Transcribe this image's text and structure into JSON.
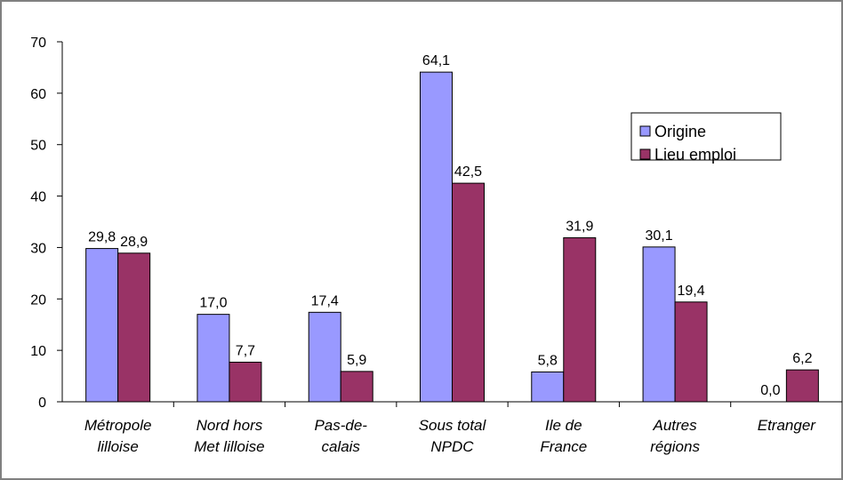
{
  "chart_data": {
    "type": "bar",
    "categories": [
      "Métropole\nlilloise",
      "Nord hors\nMet lilloise",
      "Pas-de-\ncalais",
      "Sous total\nNPDC",
      "Ile de\nFrance",
      "Autres\nrégions",
      "Etranger"
    ],
    "series": [
      {
        "name": "Origine",
        "color": "#9999ff",
        "values": [
          29.8,
          17.0,
          17.4,
          64.1,
          5.8,
          30.1,
          0.0
        ],
        "value_labels": [
          "29,8",
          "17,0",
          "17,4",
          "64,1",
          "5,8",
          "30,1",
          "0,0"
        ]
      },
      {
        "name": "Lieu emploi",
        "color": "#993366",
        "values": [
          28.9,
          7.7,
          5.9,
          42.5,
          31.9,
          19.4,
          6.2
        ],
        "value_labels": [
          "28,9",
          "7,7",
          "5,9",
          "42,5",
          "31,9",
          "19,4",
          "6,2"
        ]
      }
    ],
    "ylim": [
      0,
      70
    ],
    "yticks": [
      0,
      10,
      20,
      30,
      40,
      50,
      60,
      70
    ],
    "legend": "right"
  }
}
